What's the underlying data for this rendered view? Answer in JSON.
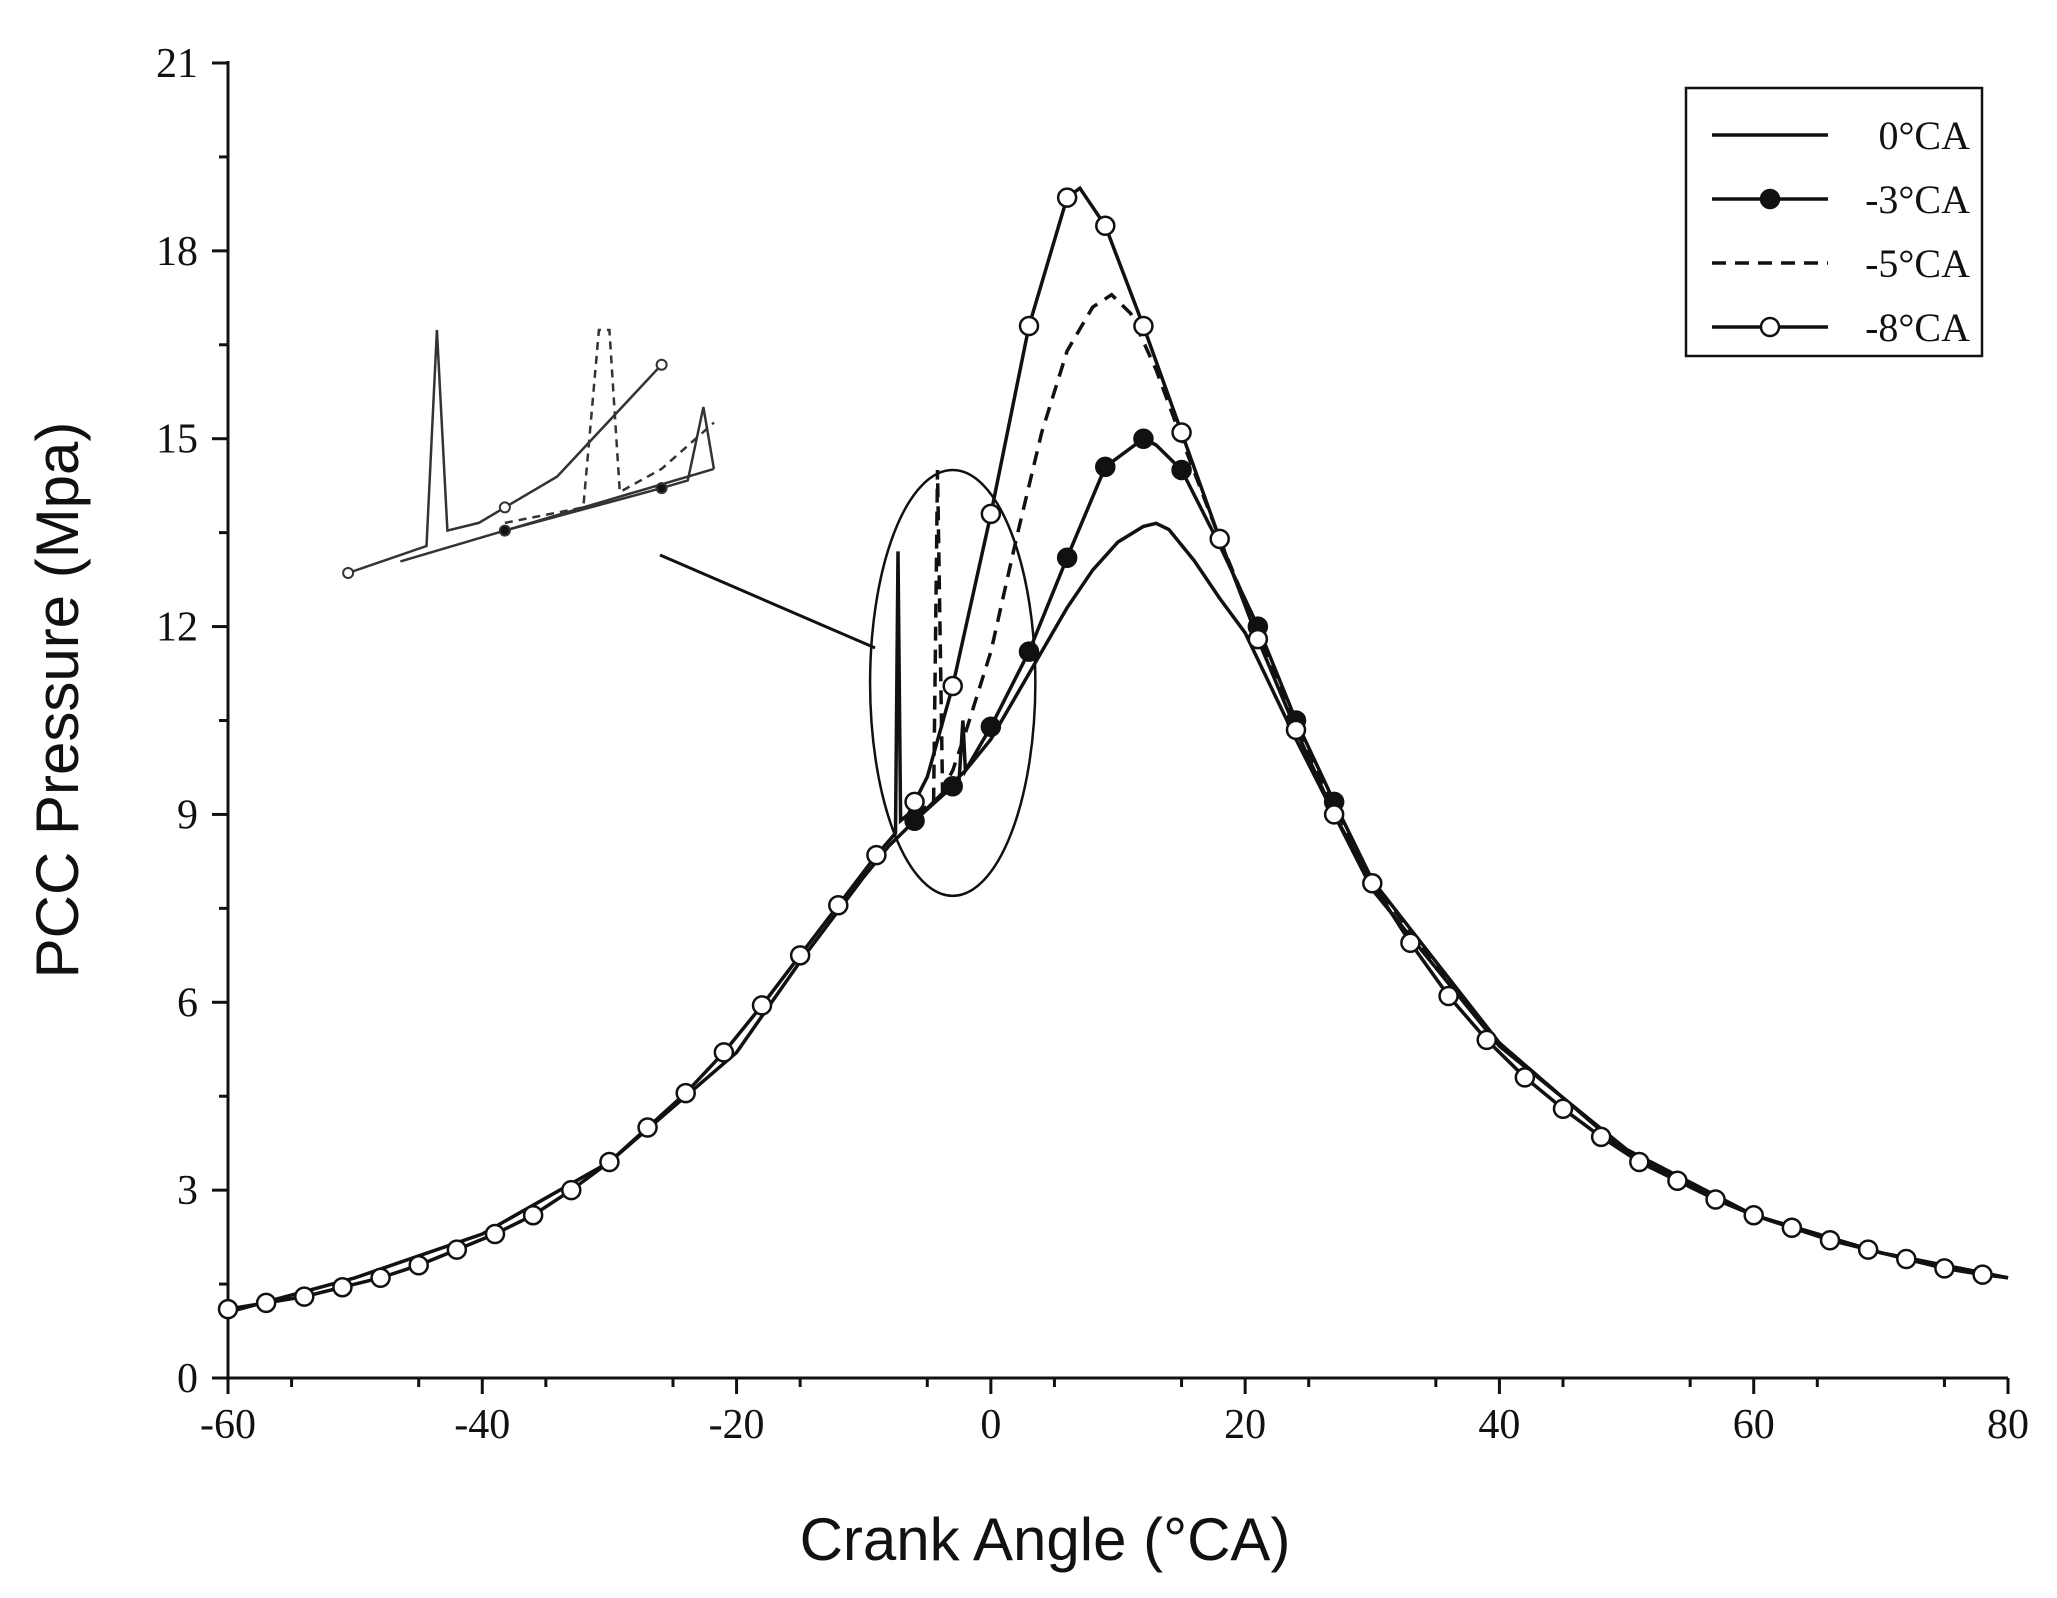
{
  "chart_data": {
    "type": "line",
    "xlabel": "Crank Angle (°CA)",
    "ylabel": "PCC Pressure (Mpa)",
    "xlim": [
      -60,
      80
    ],
    "ylim": [
      0,
      21
    ],
    "xticks": [
      -60,
      -40,
      -20,
      0,
      20,
      40,
      60,
      80
    ],
    "yticks": [
      0,
      3,
      6,
      9,
      12,
      15,
      18,
      21
    ],
    "grid": false,
    "legend_position": "top-right",
    "series": [
      {
        "name": "0°CA",
        "style": "solid",
        "marker": "none",
        "x": [
          -60,
          -50,
          -40,
          -30,
          -20,
          -15,
          -10,
          -8,
          -6,
          -4,
          -2,
          0,
          2,
          4,
          6,
          8,
          10,
          12,
          13,
          14,
          16,
          18,
          20,
          24,
          30,
          40,
          50,
          60,
          70,
          80
        ],
        "y": [
          1.05,
          1.6,
          2.3,
          3.45,
          5.2,
          6.65,
          8.0,
          8.5,
          8.9,
          9.3,
          9.7,
          10.2,
          10.9,
          11.6,
          12.3,
          12.9,
          13.35,
          13.6,
          13.65,
          13.55,
          13.05,
          12.45,
          11.9,
          10.2,
          7.8,
          5.3,
          3.65,
          2.6,
          2.0,
          1.6
        ]
      },
      {
        "name": "-3°CA",
        "style": "solid",
        "marker": "filled-circle",
        "x": [
          -6,
          -3,
          -2.5,
          -2.2,
          -2,
          0,
          3,
          6,
          9,
          12,
          13,
          15,
          18,
          21,
          24,
          27,
          30,
          40,
          50,
          60,
          70,
          80
        ],
        "y": [
          8.9,
          9.45,
          9.55,
          10.5,
          9.7,
          10.4,
          11.6,
          13.1,
          14.55,
          15.0,
          14.9,
          14.5,
          13.3,
          12.0,
          10.5,
          9.2,
          7.95,
          5.35,
          3.6,
          2.6,
          2.0,
          1.6
        ],
        "marker_x": [
          -6,
          -3,
          0,
          3,
          6,
          9,
          12,
          15,
          21,
          24,
          27
        ],
        "marker_y": [
          8.9,
          9.45,
          10.4,
          11.6,
          13.1,
          14.55,
          15.0,
          14.5,
          12.0,
          10.5,
          9.2
        ]
      },
      {
        "name": "-5°CA",
        "style": "dashed",
        "marker": "none",
        "x": [
          -6,
          -4.5,
          -4.2,
          -4,
          -3.8,
          -3,
          -2,
          0,
          2,
          4,
          6,
          8,
          9.5,
          11,
          13,
          15,
          18,
          21,
          24,
          30,
          40,
          50,
          60,
          70,
          80
        ],
        "y": [
          9.0,
          9.2,
          14.5,
          12.0,
          9.4,
          9.7,
          10.3,
          11.6,
          13.4,
          15.1,
          16.4,
          17.1,
          17.3,
          17.0,
          16.1,
          15.0,
          13.4,
          11.9,
          10.4,
          7.9,
          5.35,
          3.6,
          2.6,
          2.0,
          1.6
        ]
      },
      {
        "name": "-8°CA",
        "style": "solid",
        "marker": "open-circle",
        "x": [
          -60,
          -57,
          -54,
          -51,
          -48,
          -45,
          -42,
          -39,
          -36,
          -33,
          -30,
          -27,
          -24,
          -21,
          -18,
          -15,
          -12,
          -9,
          -7.5,
          -7.3,
          -7.1,
          -6.5,
          -6,
          -5,
          -3,
          0,
          3,
          6,
          7,
          9,
          12,
          15,
          18,
          21,
          24,
          27,
          30,
          33,
          36,
          39,
          42,
          45,
          48,
          51,
          54,
          57,
          60,
          63,
          66,
          69,
          72,
          75,
          78,
          80
        ],
        "y": [
          1.1,
          1.2,
          1.3,
          1.45,
          1.6,
          1.8,
          2.05,
          2.3,
          2.6,
          3.0,
          3.45,
          4.0,
          4.55,
          5.2,
          5.95,
          6.75,
          7.55,
          8.35,
          8.7,
          13.2,
          8.9,
          9.0,
          9.2,
          9.6,
          11.05,
          13.8,
          16.8,
          18.85,
          19.0,
          18.4,
          16.8,
          15.1,
          13.4,
          11.8,
          10.35,
          9.0,
          7.9,
          6.95,
          6.1,
          5.4,
          4.8,
          4.3,
          3.85,
          3.45,
          3.15,
          2.85,
          2.6,
          2.4,
          2.2,
          2.05,
          1.9,
          1.75,
          1.65,
          1.6
        ],
        "marker_x": [
          -60,
          -57,
          -54,
          -51,
          -48,
          -45,
          -42,
          -39,
          -36,
          -33,
          -30,
          -27,
          -24,
          -21,
          -18,
          -15,
          -12,
          -9,
          -6,
          -3,
          0,
          3,
          6,
          9,
          12,
          15,
          18,
          21,
          24,
          27,
          30,
          33,
          36,
          39,
          42,
          45,
          48,
          51,
          54,
          57,
          60,
          63,
          66,
          69,
          72,
          75,
          78
        ],
        "marker_y": [
          1.1,
          1.2,
          1.3,
          1.45,
          1.6,
          1.8,
          2.05,
          2.3,
          2.6,
          3.0,
          3.45,
          4.0,
          4.55,
          5.2,
          5.95,
          6.75,
          7.55,
          8.35,
          9.2,
          11.05,
          13.8,
          16.8,
          18.85,
          18.4,
          16.8,
          15.1,
          13.4,
          11.8,
          10.35,
          9.0,
          7.9,
          6.95,
          6.1,
          5.4,
          4.8,
          4.3,
          3.85,
          3.45,
          3.15,
          2.85,
          2.6,
          2.4,
          2.2,
          2.05,
          1.9,
          1.75,
          1.65
        ]
      }
    ],
    "annotations": [
      {
        "type": "ellipse",
        "x_range": [
          -9.5,
          3.5
        ],
        "y_range": [
          7.7,
          14.5
        ]
      },
      {
        "type": "zoom-inset",
        "description_only": true
      }
    ]
  }
}
